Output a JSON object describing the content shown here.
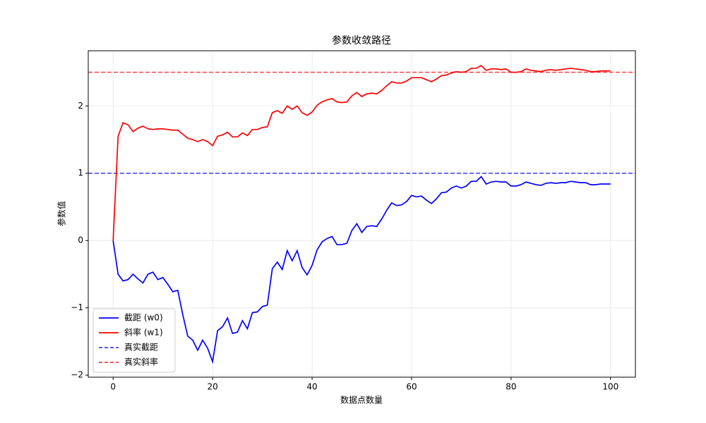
{
  "chart_data": {
    "type": "line",
    "title": "参数收敛路径",
    "xlabel": "数据点数量",
    "ylabel": "参数值",
    "x": [
      0,
      1,
      2,
      3,
      4,
      5,
      6,
      7,
      8,
      9,
      10,
      11,
      12,
      13,
      14,
      15,
      16,
      17,
      18,
      19,
      20,
      21,
      22,
      23,
      24,
      25,
      26,
      27,
      28,
      29,
      30,
      31,
      32,
      33,
      34,
      35,
      36,
      37,
      38,
      39,
      40,
      41,
      42,
      43,
      44,
      45,
      46,
      47,
      48,
      49,
      50,
      51,
      52,
      53,
      54,
      55,
      56,
      57,
      58,
      59,
      60,
      61,
      62,
      63,
      64,
      65,
      66,
      67,
      68,
      69,
      70,
      71,
      72,
      73,
      74,
      75,
      76,
      77,
      78,
      79,
      80,
      81,
      82,
      83,
      84,
      85,
      86,
      87,
      88,
      89,
      90,
      91,
      92,
      93,
      94,
      95,
      96,
      97,
      98,
      99,
      100
    ],
    "series": [
      {
        "name": "截距 (w0)",
        "color": "#0000ff",
        "values": [
          0,
          -0.5,
          -0.6,
          -0.58,
          -0.5,
          -0.57,
          -0.63,
          -0.5,
          -0.47,
          -0.58,
          -0.55,
          -0.65,
          -0.76,
          -0.74,
          -1.1,
          -1.42,
          -1.48,
          -1.63,
          -1.48,
          -1.6,
          -1.8,
          -1.34,
          -1.28,
          -1.15,
          -1.38,
          -1.36,
          -1.19,
          -1.31,
          -1.07,
          -1.06,
          -0.98,
          -0.96,
          -0.42,
          -0.32,
          -0.43,
          -0.15,
          -0.3,
          -0.15,
          -0.4,
          -0.51,
          -0.37,
          -0.14,
          -0.02,
          0.03,
          0.06,
          -0.06,
          -0.06,
          -0.04,
          0.15,
          0.25,
          0.12,
          0.21,
          0.22,
          0.21,
          0.32,
          0.45,
          0.56,
          0.52,
          0.53,
          0.58,
          0.67,
          0.65,
          0.66,
          0.6,
          0.55,
          0.62,
          0.71,
          0.72,
          0.78,
          0.81,
          0.78,
          0.81,
          0.88,
          0.88,
          0.95,
          0.84,
          0.87,
          0.88,
          0.87,
          0.87,
          0.81,
          0.81,
          0.83,
          0.87,
          0.85,
          0.83,
          0.82,
          0.85,
          0.86,
          0.85,
          0.86,
          0.86,
          0.88,
          0.87,
          0.86,
          0.86,
          0.83,
          0.83,
          0.84,
          0.84,
          0.84
        ]
      },
      {
        "name": "斜率 (w1)",
        "color": "#ff0000",
        "values": [
          0,
          1.55,
          1.75,
          1.72,
          1.62,
          1.67,
          1.7,
          1.66,
          1.65,
          1.66,
          1.66,
          1.65,
          1.64,
          1.64,
          1.58,
          1.52,
          1.5,
          1.47,
          1.5,
          1.47,
          1.41,
          1.55,
          1.57,
          1.61,
          1.54,
          1.54,
          1.6,
          1.56,
          1.65,
          1.65,
          1.68,
          1.69,
          1.9,
          1.93,
          1.89,
          2.0,
          1.95,
          2.0,
          1.9,
          1.86,
          1.91,
          2.01,
          2.06,
          2.09,
          2.11,
          2.06,
          2.05,
          2.06,
          2.15,
          2.2,
          2.14,
          2.18,
          2.19,
          2.18,
          2.23,
          2.3,
          2.36,
          2.34,
          2.34,
          2.37,
          2.42,
          2.42,
          2.42,
          2.39,
          2.36,
          2.4,
          2.45,
          2.46,
          2.49,
          2.51,
          2.5,
          2.51,
          2.56,
          2.56,
          2.6,
          2.53,
          2.55,
          2.55,
          2.54,
          2.55,
          2.5,
          2.5,
          2.51,
          2.55,
          2.53,
          2.52,
          2.51,
          2.53,
          2.54,
          2.53,
          2.54,
          2.55,
          2.56,
          2.55,
          2.54,
          2.53,
          2.51,
          2.51,
          2.52,
          2.52,
          2.52
        ]
      }
    ],
    "hlines": [
      {
        "name": "真实截距",
        "value": 1,
        "color": "#0000ff"
      },
      {
        "name": "真实斜率",
        "value": 2.5,
        "color": "#ff0000"
      }
    ],
    "xlim": [
      -5,
      105
    ],
    "ylim": [
      -2.03,
      2.82
    ],
    "xticks": [
      0,
      20,
      40,
      60,
      80,
      100
    ],
    "yticks": [
      {
        "value": -2,
        "label": "−2"
      },
      {
        "value": -1,
        "label": "−1"
      },
      0,
      1,
      2
    ],
    "grid": true,
    "legend": "lower left"
  }
}
